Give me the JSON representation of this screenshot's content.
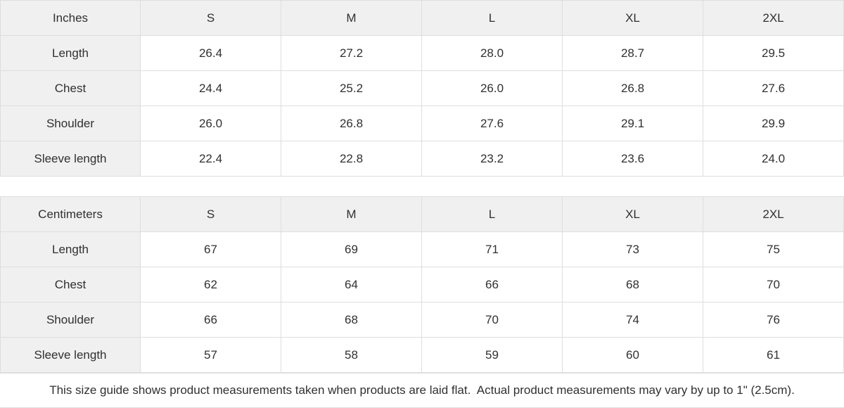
{
  "chart_data": [
    {
      "type": "table",
      "unit": "Inches",
      "sizes": [
        "S",
        "M",
        "L",
        "XL",
        "2XL"
      ],
      "rows": [
        {
          "label": "Length",
          "values": [
            "26.4",
            "27.2",
            "28.0",
            "28.7",
            "29.5"
          ]
        },
        {
          "label": "Chest",
          "values": [
            "24.4",
            "25.2",
            "26.0",
            "26.8",
            "27.6"
          ]
        },
        {
          "label": "Shoulder",
          "values": [
            "26.0",
            "26.8",
            "27.6",
            "29.1",
            "29.9"
          ]
        },
        {
          "label": "Sleeve length",
          "values": [
            "22.4",
            "22.8",
            "23.2",
            "23.6",
            "24.0"
          ]
        }
      ]
    },
    {
      "type": "table",
      "unit": "Centimeters",
      "sizes": [
        "S",
        "M",
        "L",
        "XL",
        "2XL"
      ],
      "rows": [
        {
          "label": "Length",
          "values": [
            "67",
            "69",
            "71",
            "73",
            "75"
          ]
        },
        {
          "label": "Chest",
          "values": [
            "62",
            "64",
            "66",
            "68",
            "70"
          ]
        },
        {
          "label": "Shoulder",
          "values": [
            "66",
            "68",
            "70",
            "74",
            "76"
          ]
        },
        {
          "label": "Sleeve length",
          "values": [
            "57",
            "58",
            "59",
            "60",
            "61"
          ]
        }
      ]
    }
  ],
  "footer": {
    "note": "This size guide shows product measurements taken when products are laid flat.  Actual product measurements may vary by up to 1\" (2.5cm)."
  },
  "colors": {
    "header_bg": "#f0f0f0",
    "cell_bg": "#ffffff",
    "border": "#dedede",
    "text": "#303030"
  }
}
